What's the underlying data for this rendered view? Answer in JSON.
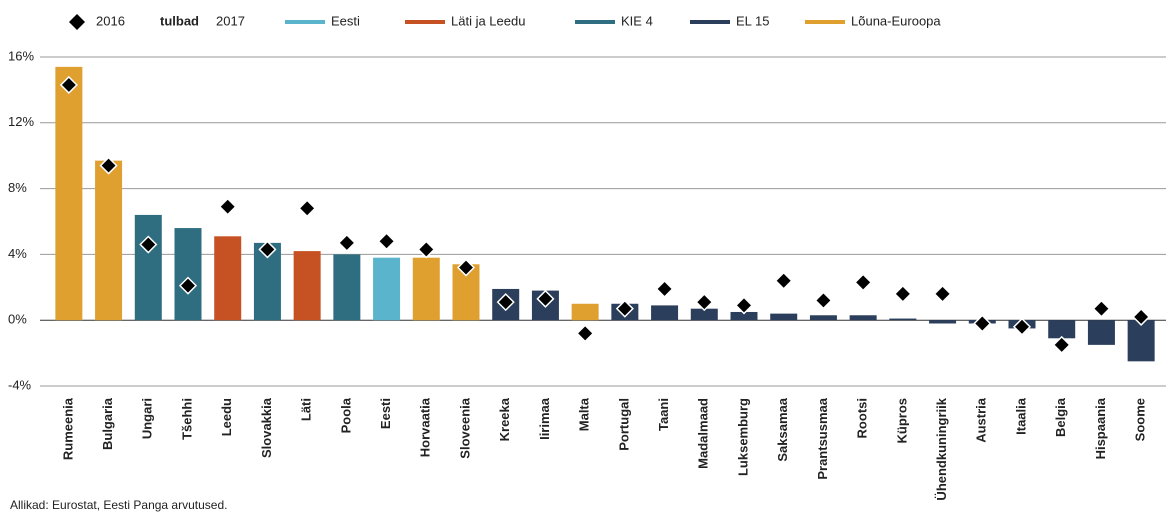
{
  "chart_data": {
    "type": "bar",
    "bars_label": "tulbad",
    "source": "Allikad: Eurostat, Eesti Panga arvutused.",
    "categories": [
      "Rumeenia",
      "Bulgaria",
      "Ungari",
      "Tšehhi",
      "Leedu",
      "Slovakkia",
      "Läti",
      "Poola",
      "Eesti",
      "Horvaatia",
      "Sloveenia",
      "Kreeka",
      "Iirimaa",
      "Malta",
      "Portugal",
      "Taani",
      "Madalmaad",
      "Luksemburg",
      "Saksamaa",
      "Prantsusmaa",
      "Rootsi",
      "Küpros",
      "Ühendkuningriik",
      "Austria",
      "Itaalia",
      "Belgia",
      "Hispaania",
      "Soome"
    ],
    "series": [
      {
        "name": "2017",
        "values": [
          15.4,
          9.7,
          6.4,
          5.6,
          5.1,
          4.7,
          4.2,
          4.0,
          3.8,
          3.8,
          3.4,
          1.9,
          1.8,
          1.0,
          1.0,
          0.9,
          0.7,
          0.5,
          0.4,
          0.3,
          0.3,
          0.1,
          -0.2,
          -0.2,
          -0.5,
          -1.1,
          -1.5,
          -2.5
        ],
        "colors": [
          "#e0a030",
          "#e0a030",
          "#2e6e80",
          "#2e6e80",
          "#c65123",
          "#2e6e80",
          "#c65123",
          "#2e6e80",
          "#5ab4cc",
          "#e0a030",
          "#e0a030",
          "#2b3f5c",
          "#2b3f5c",
          "#e0a030",
          "#2b3f5c",
          "#2b3f5c",
          "#2b3f5c",
          "#2b3f5c",
          "#2b3f5c",
          "#2b3f5c",
          "#2b3f5c",
          "#2b3f5c",
          "#2b3f5c",
          "#2b3f5c",
          "#2b3f5c",
          "#2b3f5c",
          "#2b3f5c",
          "#2b3f5c"
        ]
      },
      {
        "name": "2016",
        "marker": "diamond",
        "color": "#000000",
        "values": [
          14.3,
          9.4,
          4.6,
          2.1,
          6.9,
          4.3,
          6.8,
          4.7,
          4.8,
          4.3,
          3.2,
          1.1,
          1.3,
          -0.8,
          0.7,
          1.9,
          1.1,
          0.9,
          2.4,
          1.2,
          2.3,
          1.6,
          1.6,
          -0.2,
          -0.4,
          -1.5,
          0.7,
          0.2
        ]
      }
    ],
    "groups": [
      {
        "name": "Eesti",
        "color": "#5ab4cc"
      },
      {
        "name": "Läti ja Leedu",
        "color": "#c65123"
      },
      {
        "name": "KIE 4",
        "color": "#2e6e80"
      },
      {
        "name": "EL 15",
        "color": "#2b3f5c"
      },
      {
        "name": "Lõuna-Euroopa",
        "color": "#e0a030"
      }
    ],
    "ylim": [
      -4,
      16
    ],
    "yticks": [
      {
        "value": -4,
        "label": "-4%"
      },
      {
        "value": 0,
        "label": "0%"
      },
      {
        "value": 4,
        "label": "4%"
      },
      {
        "value": 8,
        "label": "8%"
      },
      {
        "value": 12,
        "label": "12%"
      },
      {
        "value": 16,
        "label": "16%"
      }
    ],
    "grid": true
  }
}
